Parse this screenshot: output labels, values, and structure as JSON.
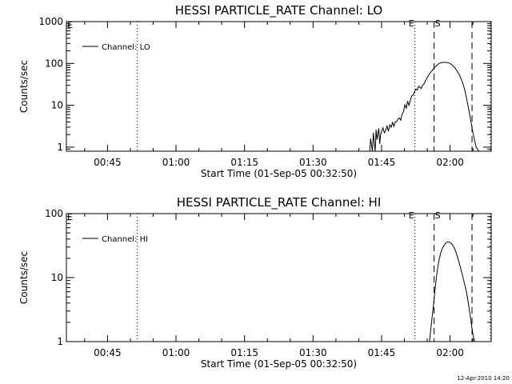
{
  "footer_timestamp": "12-Apr-2010 14:20",
  "chart_data": [
    {
      "type": "line",
      "title": "HESSI PARTICLE_RATE Channel: LO",
      "xlabel": "Start Time (01-Sep-05 00:32:50)",
      "ylabel": "Counts/sec",
      "x_unit": "minutes after 00:00 UT, 01-Sep-05",
      "xlim": [
        36,
        129
      ],
      "ylim": [
        0.8,
        1000
      ],
      "yscale": "log",
      "x_ticks": [
        {
          "value": 45,
          "label": "00:45"
        },
        {
          "value": 60,
          "label": "01:00"
        },
        {
          "value": 75,
          "label": "01:15"
        },
        {
          "value": 90,
          "label": "01:30"
        },
        {
          "value": 105,
          "label": "01:45"
        },
        {
          "value": 120,
          "label": "02:00"
        }
      ],
      "y_ticks": [
        {
          "value": 1,
          "label": "1"
        },
        {
          "value": 10,
          "label": "10"
        },
        {
          "value": 100,
          "label": "100"
        },
        {
          "value": 1000,
          "label": "1000"
        }
      ],
      "legend": {
        "label": "Channel: LO",
        "position": "top-left"
      },
      "vlines": [
        {
          "x": 51.5,
          "style": "dotted",
          "label": ""
        },
        {
          "x": 112.3,
          "style": "dotted",
          "label": "E"
        },
        {
          "x": 116.5,
          "style": "dashed",
          "label": "S"
        },
        {
          "x": 124.8,
          "style": "dashed",
          "label": ""
        },
        {
          "x": 128.8,
          "style": "dotted",
          "label": ""
        }
      ],
      "corner_marks": [
        {
          "x": 36,
          "label": "E"
        }
      ],
      "series": [
        {
          "x": [
            102.4,
            102.6,
            102.8,
            103.0,
            103.2,
            103.4,
            103.6,
            103.8,
            104.0,
            104.2,
            104.4,
            104.6,
            104.8,
            105.0,
            105.3,
            105.6,
            105.9,
            106.2,
            106.5,
            106.8,
            107.1,
            107.4,
            107.7,
            108.0,
            108.3,
            108.6,
            108.9,
            109.2,
            109.5,
            109.8,
            110.1,
            110.4,
            110.7,
            111.0,
            111.3,
            111.6,
            111.9,
            112.2,
            112.5,
            112.8,
            113.1,
            113.4,
            113.7,
            114.0,
            114.3,
            114.6,
            114.9,
            115.2,
            115.5,
            115.8,
            116.1,
            116.4,
            116.7,
            117.0,
            117.3,
            117.6,
            117.9,
            118.2,
            118.5,
            118.8,
            119.1,
            119.4,
            119.7,
            120.0,
            120.3,
            120.6,
            120.9,
            121.2,
            121.5,
            121.8,
            122.1,
            122.4,
            122.7,
            123.0,
            123.3,
            123.6,
            123.9,
            124.2,
            124.5,
            124.8,
            125.1,
            125.4,
            125.7,
            126.0,
            126.3
          ],
          "y": [
            0.8,
            1.6,
            1.1,
            0.8,
            2.2,
            1.3,
            0.8,
            2.6,
            1.5,
            2.1,
            2.8,
            1.2,
            2.0,
            2.4,
            2.9,
            2.2,
            2.5,
            3.2,
            2.4,
            3.4,
            3.0,
            3.9,
            3.1,
            4.0,
            4.1,
            4.7,
            5.0,
            4.4,
            6.2,
            7.0,
            10.5,
            8.4,
            12.6,
            10.0,
            13.2,
            16.8,
            17.4,
            21.0,
            24.2,
            23.1,
            28.4,
            27.3,
            25.2,
            30.5,
            32.6,
            38.9,
            44.1,
            50.4,
            56.7,
            63.0,
            67.2,
            75.6,
            81.9,
            88.2,
            94.5,
            99.8,
            103.0,
            105.0,
            106.1,
            107.1,
            106.1,
            105.0,
            102.9,
            99.8,
            94.5,
            89.3,
            82.4,
            74.6,
            66.2,
            58.8,
            51.5,
            43.1,
            35.7,
            28.4,
            21.0,
            14.7,
            10.0,
            6.8,
            4.4,
            2.9,
            2.0,
            1.4,
            1.0,
            0.9,
            0.8
          ]
        }
      ]
    },
    {
      "type": "line",
      "title": "HESSI PARTICLE_RATE Channel: HI",
      "xlabel": "Start Time (01-Sep-05 00:32:50)",
      "ylabel": "Counts/sec",
      "x_unit": "minutes after 00:00 UT, 01-Sep-05",
      "xlim": [
        36,
        129
      ],
      "ylim": [
        1,
        100
      ],
      "yscale": "log",
      "x_ticks": [
        {
          "value": 45,
          "label": "00:45"
        },
        {
          "value": 60,
          "label": "01:00"
        },
        {
          "value": 75,
          "label": "01:15"
        },
        {
          "value": 90,
          "label": "01:30"
        },
        {
          "value": 105,
          "label": "01:45"
        },
        {
          "value": 120,
          "label": "02:00"
        }
      ],
      "y_ticks": [
        {
          "value": 1,
          "label": "1"
        },
        {
          "value": 10,
          "label": "10"
        },
        {
          "value": 100,
          "label": "100"
        }
      ],
      "legend": {
        "label": "Channel: HI",
        "position": "top-left"
      },
      "vlines": [
        {
          "x": 51.5,
          "style": "dotted",
          "label": ""
        },
        {
          "x": 112.3,
          "style": "dotted",
          "label": "E"
        },
        {
          "x": 116.5,
          "style": "dashed",
          "label": "S"
        },
        {
          "x": 124.8,
          "style": "dashed",
          "label": ""
        },
        {
          "x": 128.8,
          "style": "dotted",
          "label": ""
        }
      ],
      "corner_marks": [
        {
          "x": 36,
          "label": "E"
        }
      ],
      "series": [
        {
          "x": [
            115.5,
            115.8,
            116.1,
            116.4,
            116.7,
            117.0,
            117.3,
            117.6,
            117.9,
            118.2,
            118.5,
            118.8,
            119.1,
            119.4,
            119.7,
            120.0,
            120.3,
            120.6,
            120.9,
            121.2,
            121.5,
            121.8,
            122.1,
            122.4,
            122.7,
            123.0,
            123.3,
            123.6,
            123.9,
            124.2,
            124.5,
            124.8,
            125.1,
            125.4
          ],
          "y": [
            1.0,
            1.6,
            2.5,
            4.0,
            6.5,
            10.0,
            14.5,
            19.0,
            23.5,
            27.5,
            30.5,
            33.0,
            35.0,
            36.0,
            36.0,
            35.2,
            34.0,
            32.0,
            29.0,
            26.0,
            22.5,
            19.0,
            16.0,
            13.2,
            11.0,
            9.0,
            7.3,
            5.8,
            4.4,
            3.2,
            2.3,
            1.6,
            1.2,
            1.0
          ]
        }
      ]
    }
  ]
}
